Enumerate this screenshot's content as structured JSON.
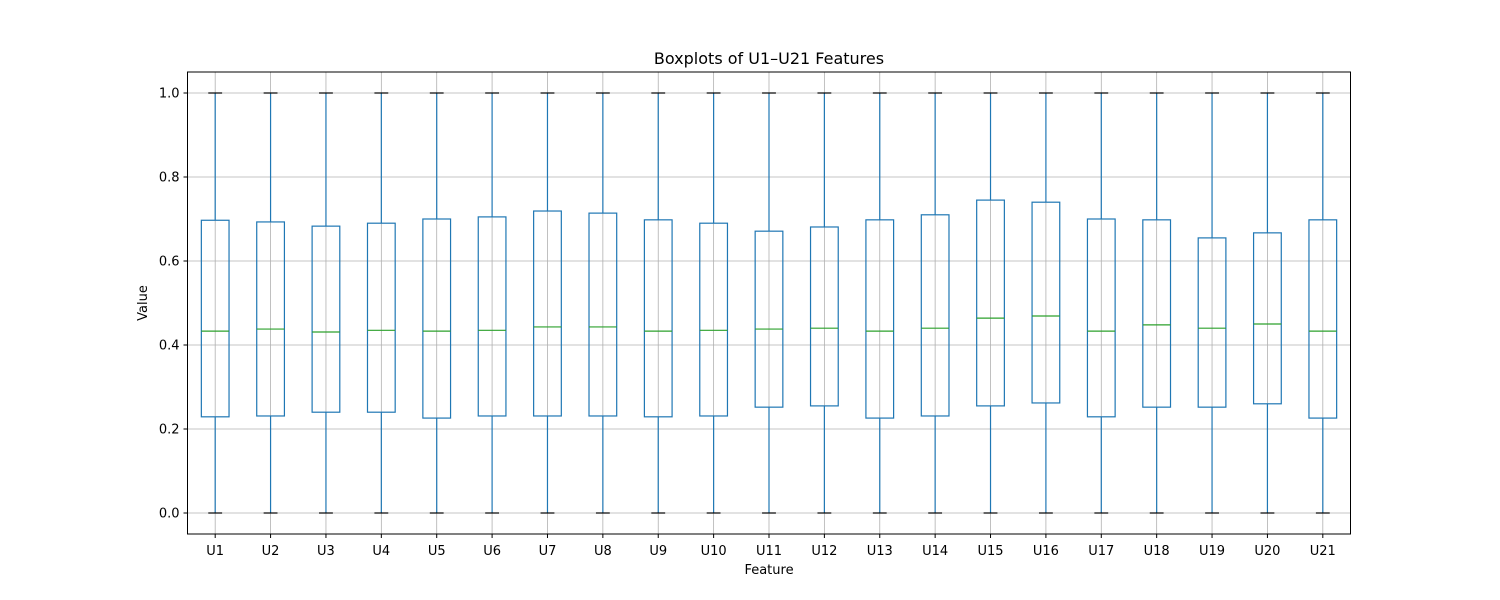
{
  "chart_data": {
    "type": "boxplot",
    "title": "Boxplots of U1–U21 Features",
    "xlabel": "Feature",
    "ylabel": "Value",
    "ylim": [
      -0.05,
      1.05
    ],
    "yticks": [
      "0.0",
      "0.2",
      "0.4",
      "0.6",
      "0.8",
      "1.0"
    ],
    "grid": true,
    "colors": {
      "box": "#1f77b4",
      "median": "#2ca02c",
      "cap": "#000000",
      "grid": "#b0b0b0"
    },
    "categories": [
      "U1",
      "U2",
      "U3",
      "U4",
      "U5",
      "U6",
      "U7",
      "U8",
      "U9",
      "U10",
      "U11",
      "U12",
      "U13",
      "U14",
      "U15",
      "U16",
      "U17",
      "U18",
      "U19",
      "U20",
      "U21"
    ],
    "boxes": [
      {
        "min": 0.0,
        "q1": 0.229,
        "median": 0.433,
        "q3": 0.697,
        "max": 1.0
      },
      {
        "min": 0.0,
        "q1": 0.231,
        "median": 0.438,
        "q3": 0.693,
        "max": 1.0
      },
      {
        "min": 0.0,
        "q1": 0.24,
        "median": 0.431,
        "q3": 0.683,
        "max": 1.0
      },
      {
        "min": 0.0,
        "q1": 0.24,
        "median": 0.435,
        "q3": 0.69,
        "max": 1.0
      },
      {
        "min": 0.0,
        "q1": 0.226,
        "median": 0.433,
        "q3": 0.7,
        "max": 1.0
      },
      {
        "min": 0.0,
        "q1": 0.231,
        "median": 0.435,
        "q3": 0.705,
        "max": 1.0
      },
      {
        "min": 0.0,
        "q1": 0.231,
        "median": 0.443,
        "q3": 0.719,
        "max": 1.0
      },
      {
        "min": 0.0,
        "q1": 0.231,
        "median": 0.443,
        "q3": 0.714,
        "max": 1.0
      },
      {
        "min": 0.0,
        "q1": 0.229,
        "median": 0.433,
        "q3": 0.698,
        "max": 1.0
      },
      {
        "min": 0.0,
        "q1": 0.231,
        "median": 0.435,
        "q3": 0.69,
        "max": 1.0
      },
      {
        "min": 0.0,
        "q1": 0.252,
        "median": 0.438,
        "q3": 0.671,
        "max": 1.0
      },
      {
        "min": 0.0,
        "q1": 0.255,
        "median": 0.44,
        "q3": 0.681,
        "max": 1.0
      },
      {
        "min": 0.0,
        "q1": 0.226,
        "median": 0.433,
        "q3": 0.698,
        "max": 1.0
      },
      {
        "min": 0.0,
        "q1": 0.231,
        "median": 0.44,
        "q3": 0.71,
        "max": 1.0
      },
      {
        "min": 0.0,
        "q1": 0.255,
        "median": 0.464,
        "q3": 0.745,
        "max": 1.0
      },
      {
        "min": 0.0,
        "q1": 0.262,
        "median": 0.469,
        "q3": 0.74,
        "max": 1.0
      },
      {
        "min": 0.0,
        "q1": 0.229,
        "median": 0.433,
        "q3": 0.7,
        "max": 1.0
      },
      {
        "min": 0.0,
        "q1": 0.252,
        "median": 0.448,
        "q3": 0.698,
        "max": 1.0
      },
      {
        "min": 0.0,
        "q1": 0.252,
        "median": 0.44,
        "q3": 0.655,
        "max": 1.0
      },
      {
        "min": 0.0,
        "q1": 0.26,
        "median": 0.45,
        "q3": 0.667,
        "max": 1.0
      },
      {
        "min": 0.0,
        "q1": 0.226,
        "median": 0.433,
        "q3": 0.698,
        "max": 1.0
      }
    ]
  }
}
